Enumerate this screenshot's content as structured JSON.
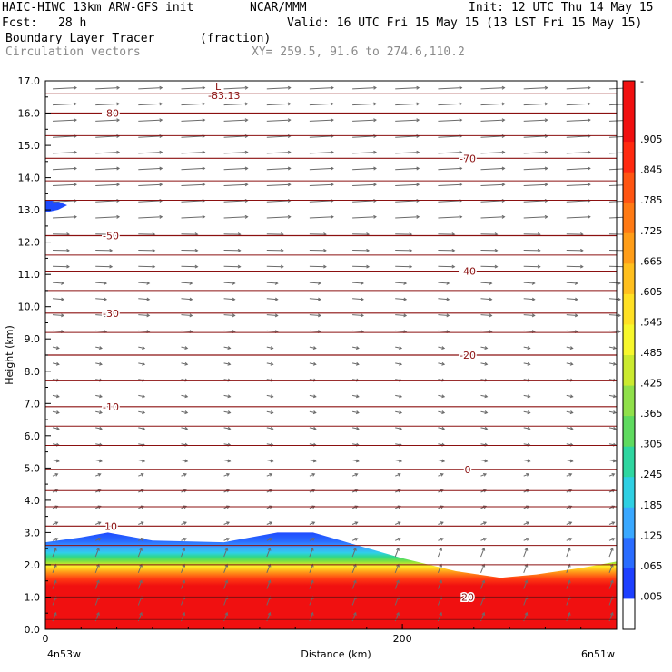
{
  "header": {
    "model": "HAIC-HIWC 13km ARW-GFS init",
    "org": "NCAR/MMM",
    "init": "Init: 12 UTC Thu 14 May 15",
    "fcst_label": "Fcst:",
    "fcst_value": "28 h",
    "valid": "Valid: 16 UTC Fri 15 May 15 (13 LST Fri 15 May 15)",
    "field": "Boundary Layer Tracer",
    "field_units": "(fraction)",
    "vectors": "Circulation vectors",
    "xy": "XY= 259.5, 91.6 to 274.6,110.2"
  },
  "chart_data": {
    "type": "cross-section",
    "ylabel": "Height (km)",
    "xlabel": "Distance (km)",
    "ylim": [
      0,
      17
    ],
    "yticks": [
      "0.0",
      "1.0",
      "2.0",
      "3.0",
      "4.0",
      "5.0",
      "6.0",
      "7.0",
      "8.0",
      "9.0",
      "10.0",
      "11.0",
      "12.0",
      "13.0",
      "14.0",
      "15.0",
      "16.0",
      "17.0"
    ],
    "xlim": [
      0,
      320
    ],
    "xticks": [
      "0",
      "200"
    ],
    "left_endpoint": "4n53w",
    "right_endpoint": "6n51w",
    "min_label": "L",
    "min_value": "-83.13",
    "temperature_contours": [
      {
        "label": "-80",
        "height_km": 16.0
      },
      {
        "label": "-70",
        "height_km": 14.6
      },
      {
        "label": "-50",
        "height_km": 12.2
      },
      {
        "label": "-40",
        "height_km": 11.1
      },
      {
        "label": "-30",
        "height_km": 9.8
      },
      {
        "label": "-20",
        "height_km": 8.5
      },
      {
        "label": "-10",
        "height_km": 6.9
      },
      {
        "label": "0",
        "height_km": 4.95
      },
      {
        "label": "10",
        "height_km": 3.2
      },
      {
        "label": "20",
        "height_km": 1.0
      }
    ],
    "tracer_top_km": [
      [
        0,
        2.7
      ],
      [
        20,
        2.85
      ],
      [
        35,
        3.0
      ],
      [
        60,
        2.75
      ],
      [
        100,
        2.7
      ],
      [
        130,
        3.0
      ],
      [
        150,
        3.0
      ],
      [
        175,
        2.6
      ],
      [
        200,
        2.2
      ],
      [
        230,
        1.8
      ],
      [
        255,
        1.6
      ],
      [
        275,
        1.7
      ],
      [
        300,
        1.9
      ],
      [
        320,
        2.1
      ]
    ],
    "colorbar_labels": [
      "-",
      ".905",
      ".845",
      ".785",
      ".725",
      ".665",
      ".605",
      ".545",
      ".485",
      ".425",
      ".365",
      ".305",
      ".245",
      ".185",
      ".125",
      ".065",
      ".005"
    ]
  }
}
